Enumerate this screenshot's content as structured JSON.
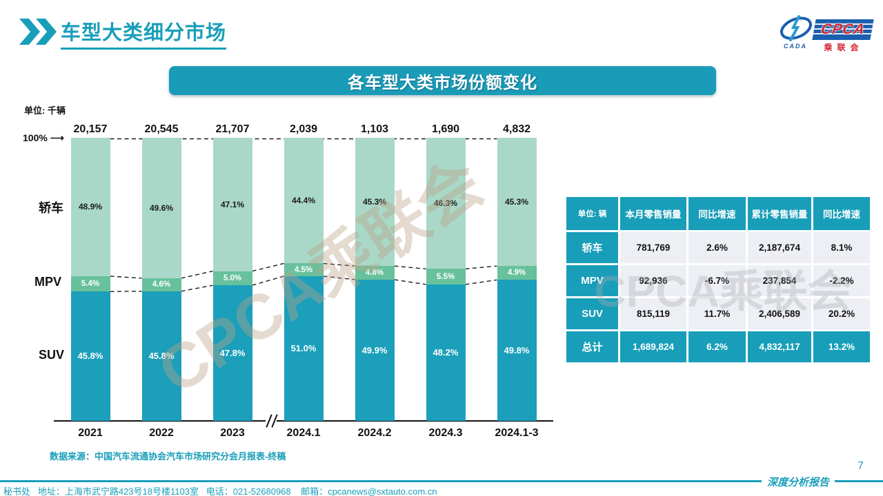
{
  "page": {
    "title": "车型大类细分市场",
    "page_number": "7",
    "report_label": "深度分析报告"
  },
  "logo": {
    "acronym": "CPCA",
    "cn_name": "乘联会",
    "cada": "CADA"
  },
  "banner": {
    "title": "各车型大类市场份额变化"
  },
  "chart_data": {
    "type": "bar",
    "variant": "100-percent-stacked-columns",
    "title": "各车型大类市场份额变化",
    "unit_label": "单位: 千辆",
    "y_top_label": "100%",
    "legend_position": "left",
    "gridlines": false,
    "axis_break_after": "2023",
    "categories": [
      "2021",
      "2022",
      "2023",
      "2024.1",
      "2024.2",
      "2024.3",
      "2024.1-3"
    ],
    "bar_totals": [
      "20,157",
      "20,545",
      "21,707",
      "2,039",
      "1,103",
      "1,690",
      "4,832"
    ],
    "series": [
      {
        "name": "轿车",
        "color": "#a9d8c8",
        "label_color": "#1a1a1a",
        "values": [
          48.9,
          49.6,
          47.1,
          44.4,
          45.3,
          46.3,
          45.3
        ]
      },
      {
        "name": "MPV",
        "color": "#67c19c",
        "label_color": "#ffffff",
        "values": [
          5.4,
          4.6,
          5.0,
          4.5,
          4.8,
          5.5,
          4.9
        ]
      },
      {
        "name": "SUV",
        "color": "#1b9fba",
        "label_color": "#ffffff",
        "values": [
          45.8,
          45.8,
          47.8,
          51.0,
          49.9,
          48.2,
          49.8
        ]
      }
    ]
  },
  "table": {
    "unit_header": "单位: 辆",
    "columns": [
      "本月零售销量",
      "同比增速",
      "累计零售销量",
      "同比增速"
    ],
    "rows": [
      {
        "label": "轿车",
        "total": false,
        "values": [
          "781,769",
          "2.6%",
          "2,187,674",
          "8.1%"
        ]
      },
      {
        "label": "MPV",
        "total": false,
        "values": [
          "92,936",
          "-6.7%",
          "237,854",
          "-2.2%"
        ]
      },
      {
        "label": "SUV",
        "total": false,
        "values": [
          "815,119",
          "11.7%",
          "2,406,589",
          "20.2%"
        ]
      },
      {
        "label": "总计",
        "total": true,
        "values": [
          "1,689,824",
          "6.2%",
          "4,832,117",
          "13.2%"
        ]
      }
    ]
  },
  "watermark": {
    "text": "CPCA乘联会"
  },
  "source_note": "数据来源：中国汽车流通协会汽车市场研究分会月报表-终稿",
  "footer": {
    "contact": "秘书处   地址：上海市武宁路423号18号楼1103室   电话：021-52680968    邮箱：cpcanews@sxtauto.com.cn"
  },
  "theme": {
    "accent": "#189eb9",
    "mint": "#a9d8c8",
    "green": "#67c19c",
    "logo_blue": "#1b5fae",
    "logo_red": "#d22630"
  }
}
